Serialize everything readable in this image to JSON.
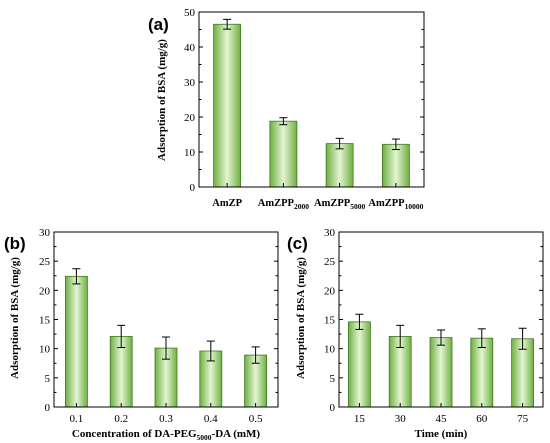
{
  "chart_data": [
    {
      "panel": "(a)",
      "type": "bar",
      "categories": [
        {
          "base": "AmZP",
          "sub": ""
        },
        {
          "base": "AmZPP",
          "sub": "2000"
        },
        {
          "base": "AmZPP",
          "sub": "5000"
        },
        {
          "base": "AmZPP",
          "sub": "10000"
        }
      ],
      "values": [
        46.5,
        18.8,
        12.4,
        12.2
      ],
      "errors": [
        1.4,
        1.0,
        1.5,
        1.5
      ],
      "xlabel": "",
      "ylabel": "Adsorption of BSA (mg/g)",
      "ylim": [
        0,
        50
      ],
      "yticks": [
        0,
        10,
        20,
        30,
        40,
        50
      ],
      "bar_color": "#8cc65a"
    },
    {
      "panel": "(b)",
      "type": "bar",
      "categories": [
        {
          "base": "0.1",
          "sub": ""
        },
        {
          "base": "0.2",
          "sub": ""
        },
        {
          "base": "0.3",
          "sub": ""
        },
        {
          "base": "0.4",
          "sub": ""
        },
        {
          "base": "0.5",
          "sub": ""
        }
      ],
      "values": [
        22.4,
        12.1,
        10.1,
        9.6,
        8.9
      ],
      "errors": [
        1.3,
        1.9,
        1.9,
        1.7,
        1.4
      ],
      "xlabel": {
        "pre": "Concentration of DA-PEG",
        "sub": "5000",
        "post": "-DA (mM)"
      },
      "ylabel": "Adsorption of BSA (mg/g)",
      "ylim": [
        0,
        30
      ],
      "yticks": [
        0,
        5,
        10,
        15,
        20,
        25,
        30
      ],
      "bar_color": "#8cc65a"
    },
    {
      "panel": "(c)",
      "type": "bar",
      "categories": [
        {
          "base": "15",
          "sub": ""
        },
        {
          "base": "30",
          "sub": ""
        },
        {
          "base": "45",
          "sub": ""
        },
        {
          "base": "60",
          "sub": ""
        },
        {
          "base": "75",
          "sub": ""
        }
      ],
      "values": [
        14.6,
        12.1,
        11.9,
        11.8,
        11.7
      ],
      "errors": [
        1.3,
        1.9,
        1.3,
        1.6,
        1.8
      ],
      "xlabel": {
        "pre": "Time (min)",
        "sub": "",
        "post": ""
      },
      "ylabel": "Adsorption of BSA (mg/g)",
      "ylim": [
        0,
        30
      ],
      "yticks": [
        0,
        5,
        10,
        15,
        20,
        25,
        30
      ],
      "bar_color": "#8cc65a"
    }
  ]
}
